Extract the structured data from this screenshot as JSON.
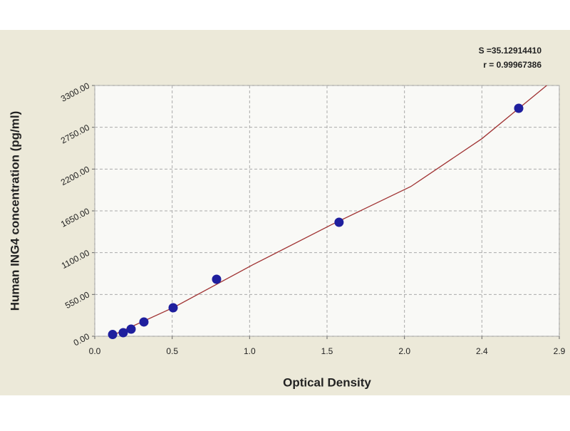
{
  "chart_data": {
    "type": "scatter",
    "x_label": "Optical Density",
    "y_label": "Human ING4 concentration (pg/ml)",
    "annotations": [
      "S =35.12914410",
      "r = 0.99967386"
    ],
    "series": [
      {
        "color": "#1f1f9e",
        "x": [
          0.113,
          0.18,
          0.23,
          0.311,
          0.496,
          0.771,
          1.546,
          2.683
        ],
        "values": [
          23,
          47,
          94,
          188,
          375,
          750,
          1500,
          3000
        ]
      }
    ],
    "fit": {
      "color": "#a03232",
      "x": [
        0.1,
        0.5,
        1.0,
        1.5,
        2.0,
        2.45,
        2.86
      ],
      "values": [
        0,
        380,
        940,
        1470,
        1970,
        2600,
        3300
      ]
    },
    "xlim": [
      0,
      2.94
    ],
    "xticks": [
      {
        "value": 0,
        "label": "0.0"
      },
      {
        "value": 0.49,
        "label": "0.5"
      },
      {
        "value": 0.98,
        "label": "1.0"
      },
      {
        "value": 1.47,
        "label": "1.5"
      },
      {
        "value": 1.96,
        "label": "2.0"
      },
      {
        "value": 2.45,
        "label": "2.4"
      },
      {
        "value": 2.94,
        "label": "2.9"
      }
    ],
    "ylim": [
      0,
      3300
    ],
    "yticks": [
      {
        "value": 0,
        "label": "0.00"
      },
      {
        "value": 550,
        "label": "550.00"
      },
      {
        "value": 1100,
        "label": "1100.00"
      },
      {
        "value": 1650,
        "label": "1650.00"
      },
      {
        "value": 2200,
        "label": "2200.00"
      },
      {
        "value": 2750,
        "label": "2750.00"
      },
      {
        "value": 3300,
        "label": "3300.00"
      }
    ],
    "grid": true
  }
}
